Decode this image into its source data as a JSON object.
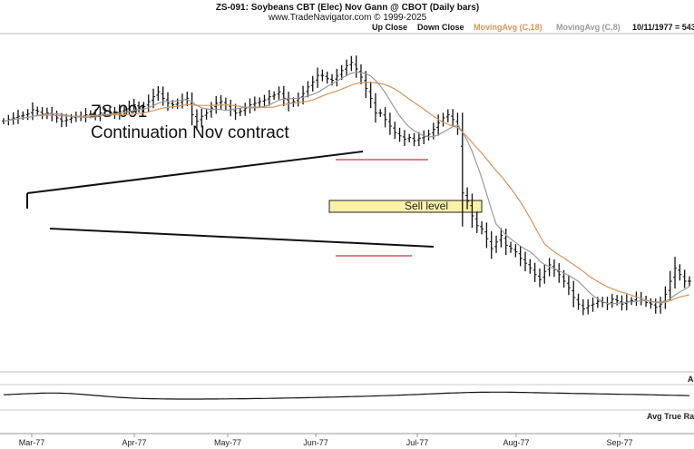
{
  "header": {
    "title": "ZS-091:  Soybeans CBT (Elec) Nov Gann @ CBOT  (Daily bars)",
    "subtitle": "www.TradeNavigator.com © 1999-2025"
  },
  "legend": {
    "up_close": "Up Close",
    "down_close": "Down Close",
    "ma18": "MovingAvg (C,18)",
    "ma8": "MovingAvg (C,8)",
    "date_readout": "10/11/1977 = 543"
  },
  "annotations": {
    "line1": "ZS-091",
    "line2": "Continuation Nov contract",
    "sell_level": "Sell level"
  },
  "subpanels": {
    "panel1_label": "A",
    "panel2_label": "Avg True Ra"
  },
  "colors": {
    "bars": "#111111",
    "ma18": "#d4955a",
    "ma8": "#9a9a9a",
    "sell_box": "#fbf2a8",
    "level_line": "#cc3333"
  },
  "chart_data": {
    "type": "ohlc",
    "x_ticks": [
      "Mar-77",
      "Apr-77",
      "May-77",
      "Jun-77",
      "Jul-77",
      "Aug-77",
      "Sep-77"
    ],
    "series": [
      {
        "name": "MovingAvg (C,18)"
      },
      {
        "name": "MovingAvg (C,8)"
      }
    ],
    "closes": [
      0.24,
      0.245,
      0.25,
      0.255,
      0.258,
      0.262,
      0.275,
      0.27,
      0.262,
      0.265,
      0.26,
      0.25,
      0.24,
      0.244,
      0.25,
      0.255,
      0.255,
      0.26,
      0.262,
      0.258,
      0.265,
      0.27,
      0.268,
      0.264,
      0.27,
      0.275,
      0.285,
      0.29,
      0.28,
      0.285,
      0.3,
      0.315,
      0.33,
      0.31,
      0.295,
      0.29,
      0.295,
      0.305,
      0.31,
      0.26,
      0.24,
      0.255,
      0.265,
      0.28,
      0.295,
      0.3,
      0.29,
      0.275,
      0.265,
      0.27,
      0.28,
      0.29,
      0.295,
      0.3,
      0.305,
      0.315,
      0.32,
      0.33,
      0.31,
      0.295,
      0.3,
      0.31,
      0.325,
      0.345,
      0.36,
      0.38,
      0.38,
      0.37,
      0.365,
      0.378,
      0.395,
      0.41,
      0.42,
      0.4,
      0.375,
      0.34,
      0.31,
      0.265,
      0.265,
      0.245,
      0.225,
      0.205,
      0.195,
      0.185,
      0.19,
      0.18,
      0.188,
      0.192,
      0.2,
      0.215,
      0.235,
      0.25,
      0.26,
      0.245,
      0.225,
      0.02,
      -0.005,
      -0.05,
      -0.08,
      -0.09,
      -0.12,
      -0.15,
      -0.13,
      -0.11,
      -0.14,
      -0.15,
      -0.16,
      -0.18,
      -0.195,
      -0.21,
      -0.23,
      -0.245,
      -0.22,
      -0.2,
      -0.215,
      -0.23,
      -0.25,
      -0.27,
      -0.3,
      -0.32,
      -0.335,
      -0.325,
      -0.32,
      -0.312,
      -0.315,
      -0.32,
      -0.305,
      -0.31,
      -0.32,
      -0.312,
      -0.31,
      -0.3,
      -0.305,
      -0.315,
      -0.32,
      -0.33,
      -0.32,
      -0.29,
      -0.25,
      -0.21,
      -0.23,
      -0.25,
      -0.25
    ],
    "ma_y_range": [
      -0.5,
      0.5
    ]
  }
}
